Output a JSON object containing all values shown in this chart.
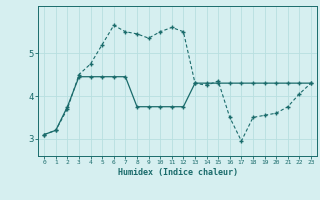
{
  "xlabel": "Humidex (Indice chaleur)",
  "background_color": "#d6eff0",
  "grid_color": "#b8dfe0",
  "line_color": "#1a6b6b",
  "x_ticks": [
    0,
    1,
    2,
    3,
    4,
    5,
    6,
    7,
    8,
    9,
    10,
    11,
    12,
    13,
    14,
    15,
    16,
    17,
    18,
    19,
    20,
    21,
    22,
    23
  ],
  "y_ticks": [
    3,
    4,
    5
  ],
  "line1_x": [
    0,
    1,
    2,
    3,
    4,
    5,
    6,
    7,
    8,
    9,
    10,
    11,
    12,
    13,
    14,
    15,
    16,
    17,
    18,
    19,
    20,
    21,
    22,
    23
  ],
  "line1_y": [
    3.1,
    3.2,
    3.7,
    4.5,
    4.75,
    5.2,
    5.65,
    5.5,
    5.45,
    5.35,
    5.5,
    5.6,
    5.5,
    4.3,
    4.25,
    4.35,
    3.5,
    2.95,
    3.5,
    3.55,
    3.6,
    3.75,
    4.05,
    4.3
  ],
  "line2_x": [
    0,
    1,
    2,
    3,
    4,
    5,
    6,
    7,
    8,
    9,
    10,
    11,
    12,
    13,
    14,
    15,
    16,
    17,
    18,
    19,
    20,
    21,
    22,
    23
  ],
  "line2_y": [
    3.1,
    3.2,
    3.75,
    4.45,
    4.45,
    4.45,
    4.45,
    4.45,
    3.75,
    3.75,
    3.75,
    3.75,
    3.75,
    4.3,
    4.3,
    4.3,
    4.3,
    4.3,
    4.3,
    4.3,
    4.3,
    4.3,
    4.3,
    4.3
  ],
  "ylim": [
    2.6,
    6.1
  ],
  "xlim": [
    -0.5,
    23.5
  ]
}
